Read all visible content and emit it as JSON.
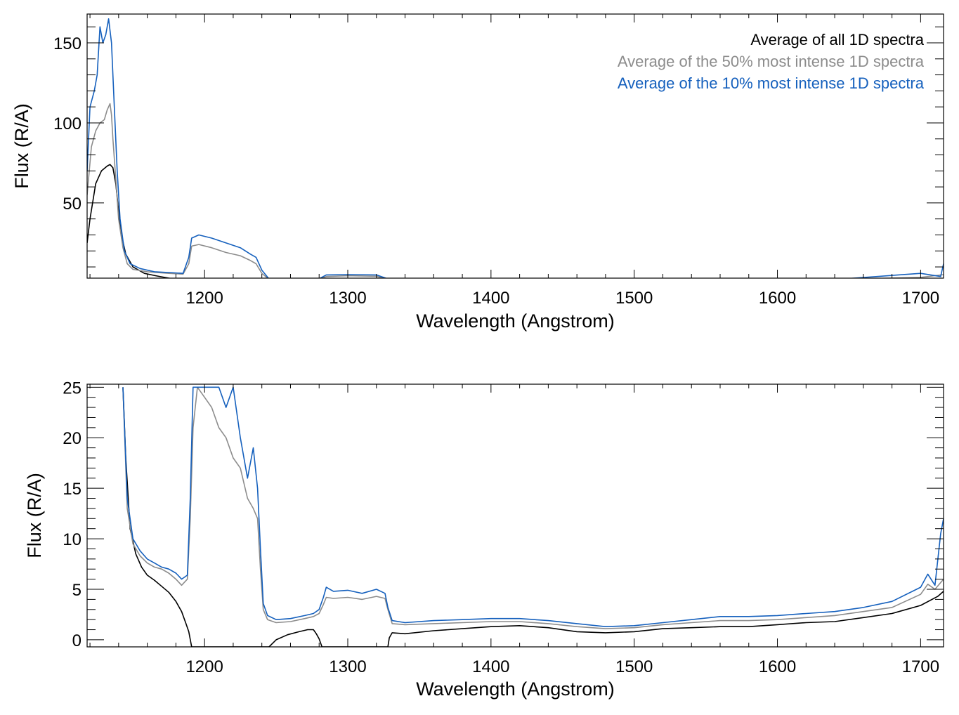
{
  "chart_data": [
    {
      "type": "line",
      "title": "",
      "xlabel": "Wavelength (Angstrom)",
      "ylabel": "Flux (R/A)",
      "xlim": [
        1118,
        1716
      ],
      "ylim": [
        3,
        168
      ],
      "xticks": [
        1200,
        1300,
        1400,
        1500,
        1600,
        1700
      ],
      "xticklabels": [
        "1200",
        "1300",
        "1400",
        "1500",
        "1600",
        "1700"
      ],
      "yticks": [
        50,
        100,
        150
      ],
      "yticklabels": [
        "50",
        "100",
        "150"
      ],
      "grid": false,
      "legend": "top-right",
      "legend_labels": [
        "Average of all 1D spectra",
        "Average of the 50% most intense 1D spectra",
        "Average of the 10% most intense 1D spectra"
      ],
      "series": [
        {
          "name": "Average of all 1D spectra",
          "color": "#000000",
          "x": [
            1118,
            1120,
            1124,
            1128,
            1132,
            1134,
            1136,
            1138,
            1140,
            1142,
            1145,
            1150,
            1158,
            1166,
            1172,
            1178,
            1182,
            1186,
            1190,
            1245,
            1255,
            1265,
            1272,
            1278
          ],
          "y": [
            25,
            40,
            62,
            70,
            73,
            74,
            72,
            62,
            45,
            30,
            18,
            10,
            6,
            4.5,
            3.5,
            2.5,
            1.5,
            0.8,
            0,
            0,
            0.5,
            0.8,
            1.0,
            0
          ]
        },
        {
          "name": "Average of the 50% most intense 1D spectra",
          "color": "#8c8c8c",
          "x": [
            1118,
            1121,
            1124,
            1127,
            1130,
            1132,
            1134,
            1135,
            1136,
            1138,
            1140,
            1143,
            1146,
            1150,
            1160,
            1175,
            1185,
            1189,
            1191,
            1196,
            1205,
            1215,
            1225,
            1232,
            1236,
            1240,
            1245,
            1260,
            1280,
            1285,
            1300,
            1320,
            1330,
            1400,
            1500,
            1550,
            1600,
            1650,
            1700,
            1716
          ],
          "y": [
            55,
            85,
            95,
            100,
            102,
            108,
            112,
            105,
            90,
            65,
            40,
            22,
            12,
            8.5,
            7,
            6,
            5.5,
            12,
            23,
            24,
            22,
            19,
            17,
            14,
            12,
            6,
            2.2,
            2,
            2.4,
            4,
            4.5,
            4.2,
            1.6,
            1.8,
            1.0,
            1.5,
            1.8,
            2.4,
            3.5,
            5.2
          ]
        },
        {
          "name": "Average of the 10% most intense 1D spectra",
          "color": "#1560bd",
          "x": [
            1118,
            1120,
            1123,
            1125,
            1127,
            1129,
            1131,
            1133,
            1135,
            1137,
            1139,
            1141,
            1144,
            1148,
            1155,
            1165,
            1175,
            1185,
            1189,
            1191,
            1196,
            1205,
            1215,
            1225,
            1232,
            1236,
            1240,
            1245,
            1260,
            1280,
            1285,
            1300,
            1320,
            1330,
            1400,
            1500,
            1550,
            1600,
            1650,
            1700,
            1714,
            1716
          ],
          "y": [
            70,
            110,
            120,
            130,
            160,
            150,
            155,
            165,
            150,
            110,
            70,
            40,
            20,
            12,
            9,
            7,
            6.5,
            6,
            16,
            28,
            30,
            28,
            25,
            22,
            18,
            16,
            8,
            2.5,
            2.2,
            2.6,
            5,
            5.2,
            5,
            1.9,
            2.2,
            1.2,
            1.8,
            2.2,
            2.8,
            6,
            4,
            12
          ]
        }
      ]
    },
    {
      "type": "line",
      "title": "",
      "xlabel": "Wavelength (Angstrom)",
      "ylabel": "Flux (R/A)",
      "xlim": [
        1118,
        1716
      ],
      "ylim": [
        -0.7,
        25.3
      ],
      "xticks": [
        1200,
        1300,
        1400,
        1500,
        1600,
        1700
      ],
      "xticklabels": [
        "1200",
        "1300",
        "1400",
        "1500",
        "1600",
        "1700"
      ],
      "yticks": [
        0,
        5,
        10,
        15,
        20,
        25
      ],
      "yticklabels": [
        "0",
        "5",
        "10",
        "15",
        "20",
        "25"
      ],
      "grid": false,
      "legend": "none",
      "series": [
        {
          "name": "Average of all 1D spectra",
          "color": "#000000",
          "x": [
            1143,
            1145,
            1148,
            1152,
            1156,
            1160,
            1165,
            1170,
            1175,
            1180,
            1184,
            1187,
            1189,
            1191,
            1245,
            1250,
            1258,
            1266,
            1272,
            1276,
            1278,
            1280,
            1282,
            1328,
            1329,
            1331,
            1340,
            1360,
            1380,
            1400,
            1420,
            1440,
            1460,
            1480,
            1500,
            1520,
            1540,
            1560,
            1580,
            1600,
            1620,
            1640,
            1660,
            1680,
            1700,
            1712,
            1716
          ],
          "y": [
            25,
            18,
            11,
            8.5,
            7.2,
            6.4,
            5.9,
            5.3,
            4.7,
            3.8,
            2.8,
            1.6,
            0.8,
            -0.7,
            -0.7,
            0,
            0.5,
            0.8,
            1.0,
            1.0,
            0.6,
            0.1,
            -0.7,
            -0.7,
            0.2,
            0.7,
            0.6,
            0.9,
            1.1,
            1.3,
            1.4,
            1.2,
            0.8,
            0.7,
            0.8,
            1.1,
            1.2,
            1.3,
            1.3,
            1.5,
            1.7,
            1.8,
            2.2,
            2.6,
            3.4,
            4.3,
            4.8
          ]
        },
        {
          "name": "Average of the 50% most intense 1D spectra",
          "color": "#8c8c8c",
          "x": [
            1143,
            1146,
            1150,
            1155,
            1160,
            1165,
            1170,
            1175,
            1180,
            1184,
            1188,
            1190,
            1192,
            1195,
            1200,
            1205,
            1210,
            1215,
            1220,
            1225,
            1230,
            1234,
            1237,
            1239,
            1241,
            1244,
            1250,
            1260,
            1270,
            1276,
            1280,
            1283,
            1285,
            1290,
            1300,
            1310,
            1320,
            1326,
            1328,
            1331,
            1340,
            1360,
            1380,
            1400,
            1420,
            1440,
            1460,
            1480,
            1500,
            1520,
            1540,
            1560,
            1580,
            1600,
            1620,
            1640,
            1660,
            1680,
            1700,
            1705,
            1710,
            1716
          ],
          "y": [
            25,
            13,
            9.5,
            8.3,
            7.6,
            7.2,
            7.0,
            6.6,
            6.0,
            5.4,
            6.0,
            12,
            21,
            25,
            24,
            23,
            21,
            20,
            18,
            17,
            14,
            13,
            12,
            7,
            3.0,
            2.0,
            1.7,
            1.8,
            2.1,
            2.3,
            2.6,
            3.5,
            4.2,
            4.1,
            4.2,
            4.0,
            4.3,
            4.1,
            3.0,
            1.6,
            1.5,
            1.6,
            1.7,
            1.8,
            1.8,
            1.6,
            1.3,
            1.1,
            1.2,
            1.5,
            1.7,
            1.9,
            1.9,
            2.0,
            2.2,
            2.4,
            2.8,
            3.2,
            4.5,
            5.5,
            5.0,
            6.0
          ]
        },
        {
          "name": "Average of the 10% most intense 1D spectra",
          "color": "#1560bd",
          "x": [
            1143,
            1146,
            1150,
            1155,
            1160,
            1165,
            1170,
            1175,
            1180,
            1184,
            1188,
            1190,
            1192,
            1195,
            1200,
            1205,
            1210,
            1215,
            1220,
            1225,
            1230,
            1234,
            1237,
            1239,
            1241,
            1244,
            1250,
            1260,
            1270,
            1276,
            1280,
            1283,
            1285,
            1290,
            1300,
            1310,
            1320,
            1326,
            1328,
            1331,
            1340,
            1360,
            1380,
            1400,
            1420,
            1440,
            1460,
            1480,
            1500,
            1520,
            1540,
            1560,
            1580,
            1600,
            1620,
            1640,
            1660,
            1680,
            1700,
            1705,
            1710,
            1714,
            1716
          ],
          "y": [
            25,
            14,
            10,
            8.8,
            8.0,
            7.6,
            7.2,
            7.0,
            6.6,
            6.0,
            6.4,
            14,
            25,
            25,
            25,
            25,
            25,
            23,
            25,
            20,
            16,
            19,
            15,
            9,
            3.6,
            2.4,
            2.0,
            2.1,
            2.4,
            2.6,
            3.0,
            4.2,
            5.2,
            4.8,
            4.9,
            4.6,
            5.0,
            4.6,
            3.2,
            1.9,
            1.7,
            1.9,
            2.0,
            2.1,
            2.1,
            1.9,
            1.6,
            1.3,
            1.4,
            1.7,
            2.0,
            2.3,
            2.3,
            2.4,
            2.6,
            2.8,
            3.2,
            3.8,
            5.2,
            6.5,
            5.4,
            10.5,
            12
          ]
        }
      ]
    }
  ]
}
